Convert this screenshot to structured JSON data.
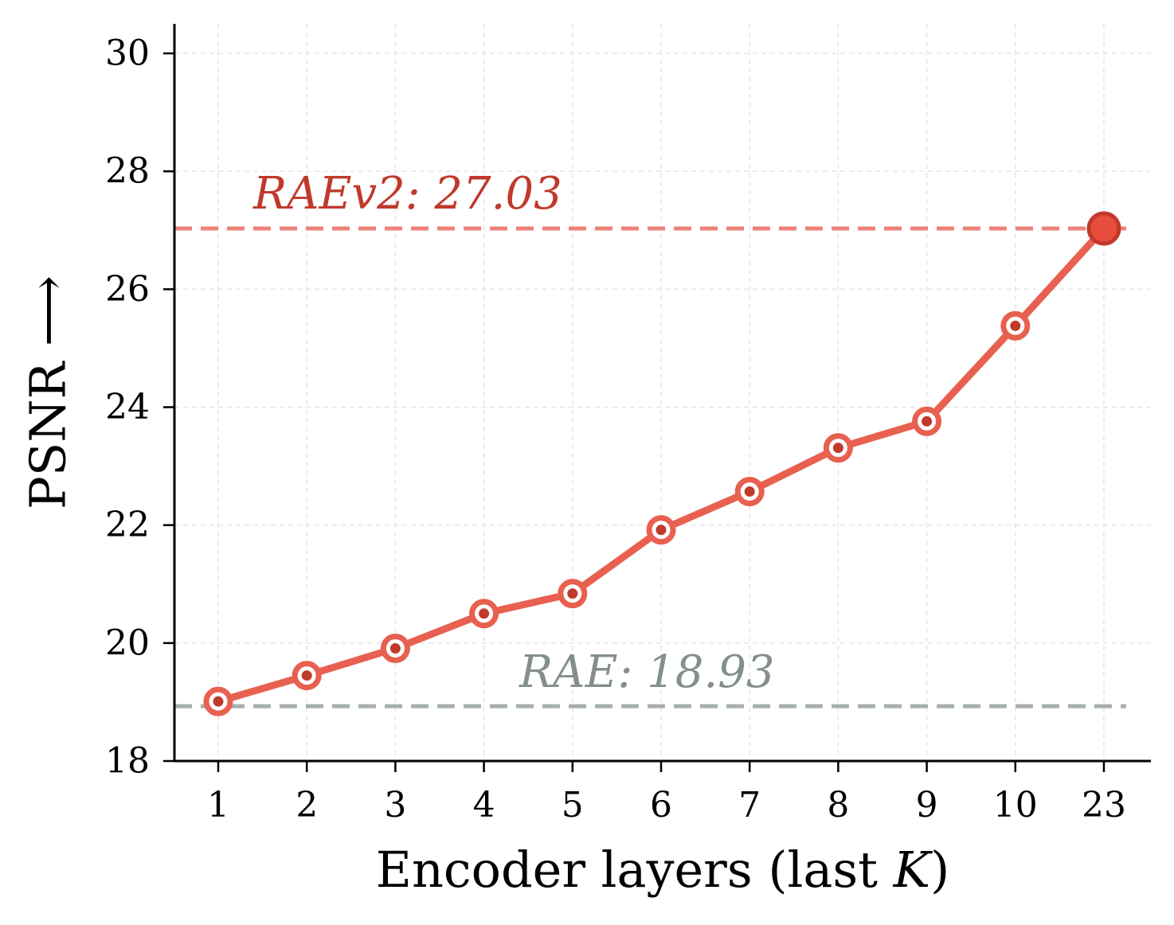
{
  "chart_data": {
    "type": "line",
    "categories": [
      "1",
      "2",
      "3",
      "4",
      "5",
      "6",
      "7",
      "8",
      "9",
      "10",
      "23"
    ],
    "series": [
      {
        "values": [
          19.01,
          19.45,
          19.91,
          20.5,
          20.84,
          21.92,
          22.57,
          23.31,
          23.76,
          25.38,
          27.03
        ]
      }
    ],
    "ylim": [
      18,
      30.5
    ],
    "yticks": [
      18,
      20,
      22,
      24,
      26,
      28,
      30
    ],
    "grid": true,
    "ylabel": "PSNR ⟶",
    "xlabel": {
      "prefix": "Encoder layers (last ",
      "variable": "K",
      "suffix": ")"
    },
    "reference_lines": [
      {
        "label": "RAEv2: 27.03",
        "value": 27.03,
        "color": "#ec8278",
        "text_color": "#c0392b"
      },
      {
        "label": "RAE: 18.93",
        "value": 18.93,
        "color": "#a5afae",
        "text_color": "#838e8d"
      }
    ],
    "colors": {
      "line": "#e8604f",
      "marker_edge": "#e8604f",
      "marker_fill": "#ffffff",
      "marker_dot": "#c0392b",
      "highlight_fill": "#e74c3c",
      "highlight_edge": "#c0392b"
    }
  }
}
